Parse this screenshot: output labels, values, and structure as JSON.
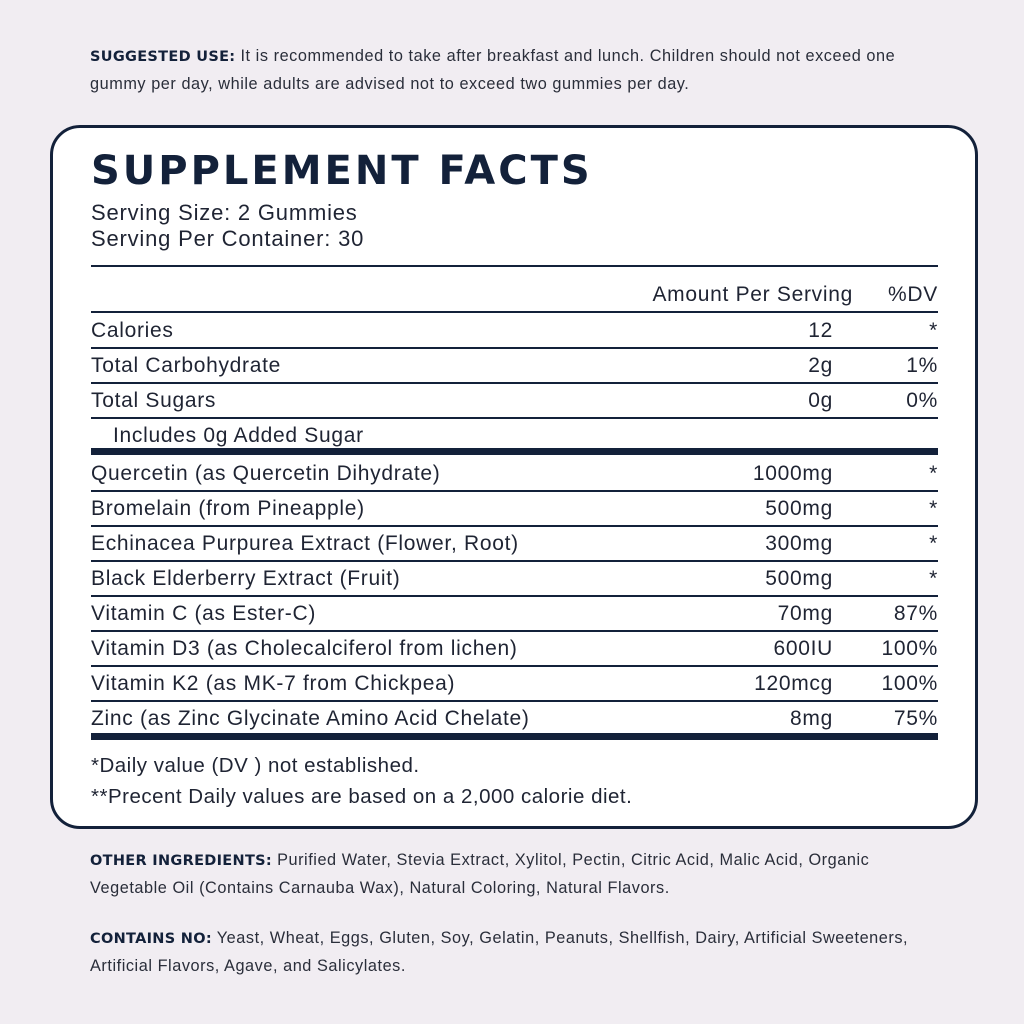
{
  "suggested_use": {
    "label": "SUGGESTED USE:",
    "text": "It is recommended to take after breakfast and lunch. Children should not exceed one gummy per day, while adults are advised not to exceed two gummies per day."
  },
  "facts": {
    "title": "SUPPLEMENT FACTS",
    "serving_size": "Serving Size: 2 Gummies",
    "servings_per_container": "Serving Per Container: 30",
    "header_amount": "Amount Per Serving",
    "header_dv": "%DV",
    "basic_rows": [
      {
        "name": "Calories",
        "amount": "12",
        "dv": "*"
      },
      {
        "name": "Total Carbohydrate",
        "amount": "2g",
        "dv": "1%"
      },
      {
        "name": "Total Sugars",
        "amount": "0g",
        "dv": "0%"
      },
      {
        "name": "Includes 0g Added Sugar",
        "amount": "",
        "dv": ""
      }
    ],
    "ingredient_rows": [
      {
        "name": "Quercetin (as Quercetin Dihydrate)",
        "amount": "1000mg",
        "dv": "*"
      },
      {
        "name": "Bromelain (from Pineapple)",
        "amount": "500mg",
        "dv": "*"
      },
      {
        "name": "Echinacea Purpurea Extract (Flower, Root)",
        "amount": "300mg",
        "dv": "*"
      },
      {
        "name": "Black Elderberry Extract (Fruit)",
        "amount": "500mg",
        "dv": "*"
      },
      {
        "name": "Vitamin C (as Ester-C)",
        "amount": "70mg",
        "dv": "87%"
      },
      {
        "name": "Vitamin D3 (as Cholecalciferol from lichen)",
        "amount": "600IU",
        "dv": "100%"
      },
      {
        "name": "Vitamin K2 (as MK-7 from Chickpea)",
        "amount": "120mcg",
        "dv": "100%"
      },
      {
        "name": "Zinc (as Zinc Glycinate Amino Acid Chelate)",
        "amount": "8mg",
        "dv": "75%"
      }
    ],
    "footnote_1": "*Daily value (DV ) not established.",
    "footnote_2": "**Precent Daily values are based  on a 2,000 calorie diet."
  },
  "other_ingredients": {
    "label": "OTHER INGREDIENTS:",
    "text": "Purified Water, Stevia Extract, Xylitol, Pectin, Citric Acid, Malic Acid, Organic Vegetable Oil (Contains Carnauba Wax), Natural Coloring, Natural Flavors."
  },
  "contains_no": {
    "label": "CONTAINS NO:",
    "text": "Yeast, Wheat, Eggs, Gluten, Soy, Gelatin, Peanuts, Shellfish, Dairy, Artificial Sweeteners, Artificial Flavors, Agave, and Salicylates."
  },
  "colors": {
    "navy": "#13213a",
    "background": "#f1edf2",
    "panel": "#ffffff"
  }
}
